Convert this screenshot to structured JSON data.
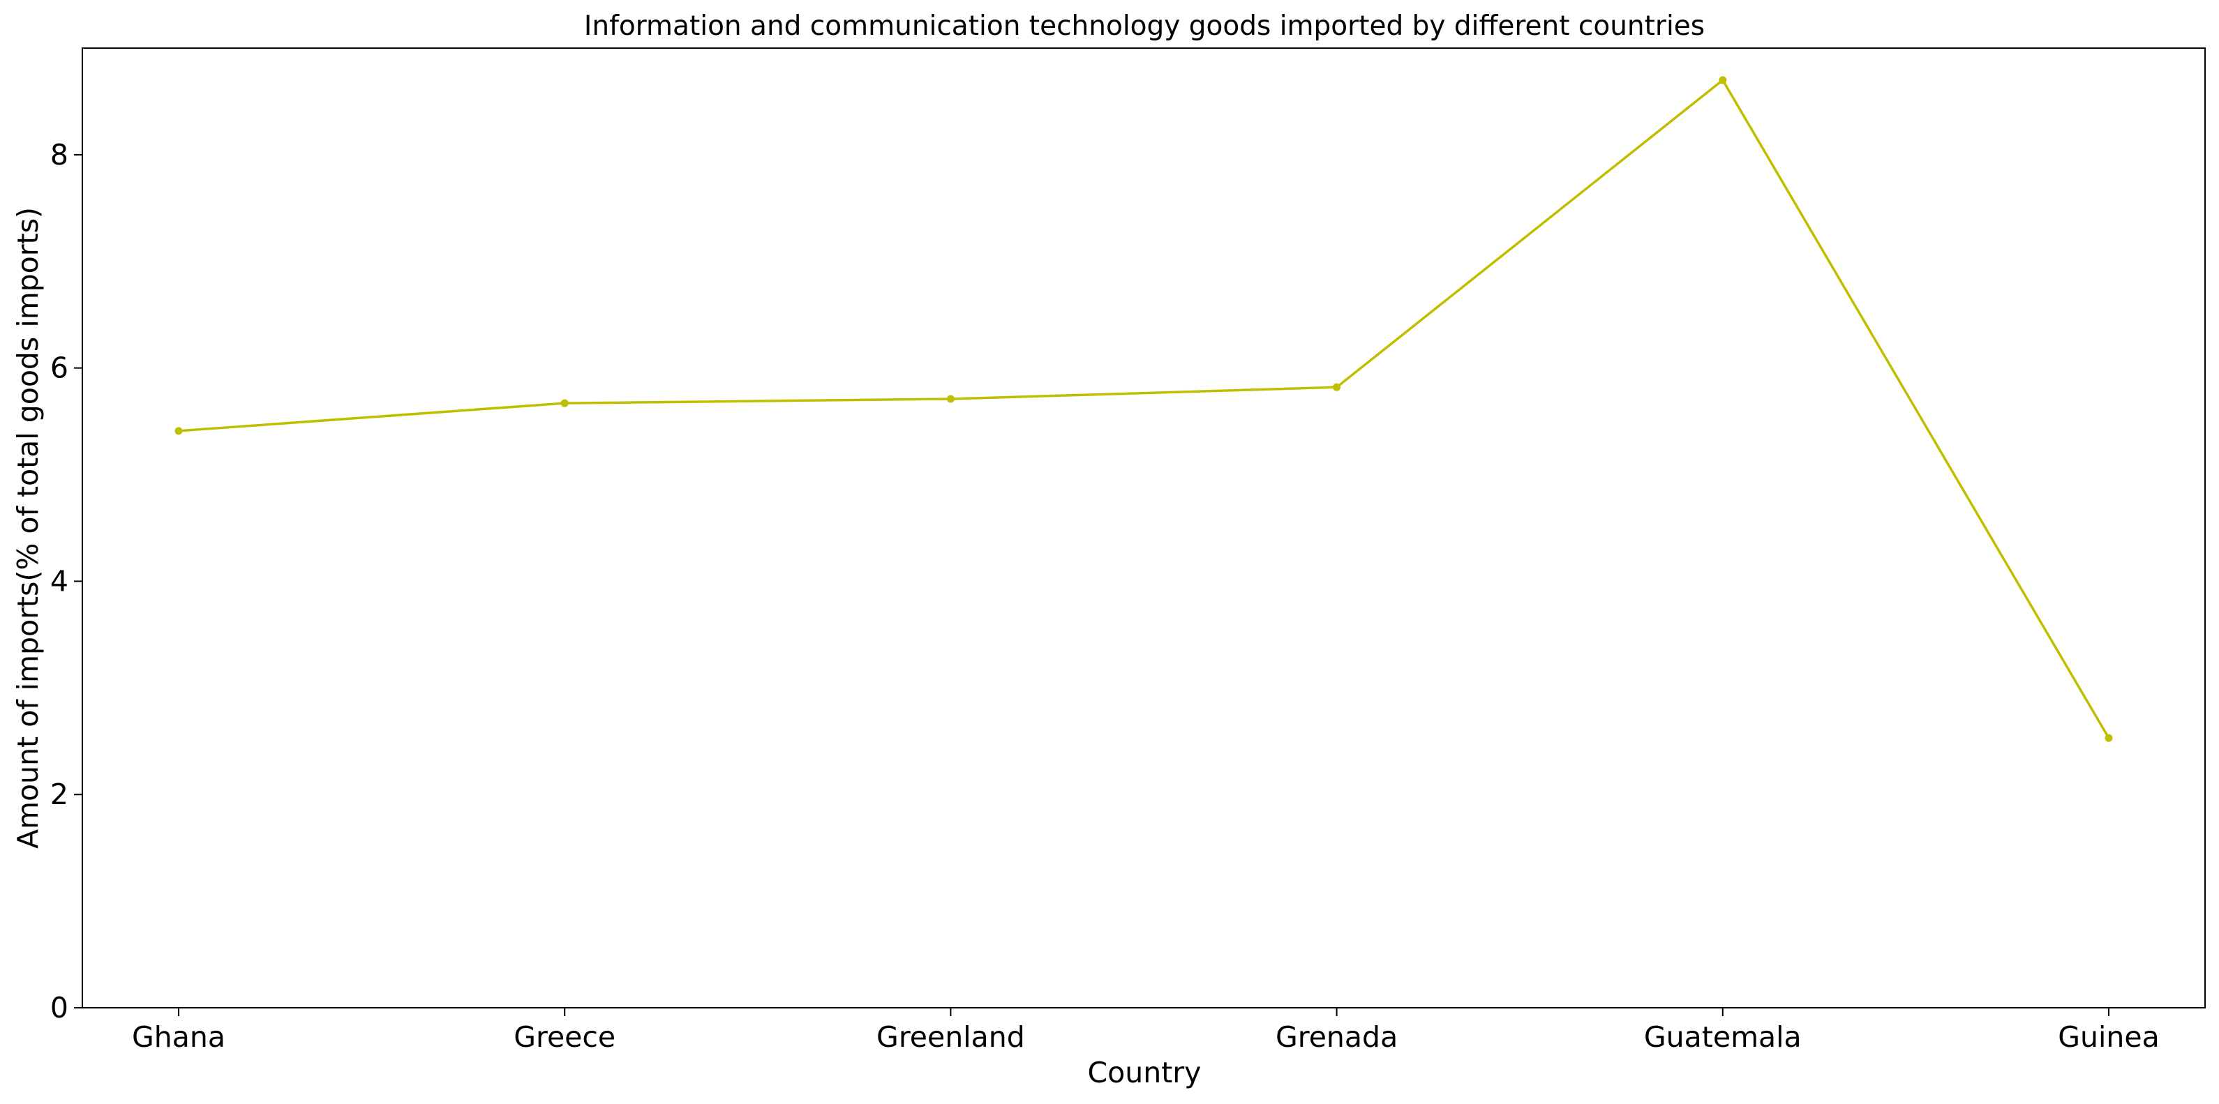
{
  "chart_data": {
    "type": "line",
    "title": "Information and communication technology goods imported by different countries",
    "xlabel": "Country",
    "ylabel": "Amount of imports(% of total goods imports)",
    "categories": [
      "Ghana",
      "Greece",
      "Greenland",
      "Grenada",
      "Guatemala",
      "Guinea"
    ],
    "series": [
      {
        "values": [
          5.41,
          5.67,
          5.71,
          5.82,
          8.7,
          2.53
        ],
        "color": "#bfbf00",
        "marker": "circle"
      }
    ],
    "ylim": [
      0,
      9
    ],
    "yticks": [
      0,
      2,
      4,
      6,
      8
    ],
    "grid": false,
    "legend": "none"
  }
}
